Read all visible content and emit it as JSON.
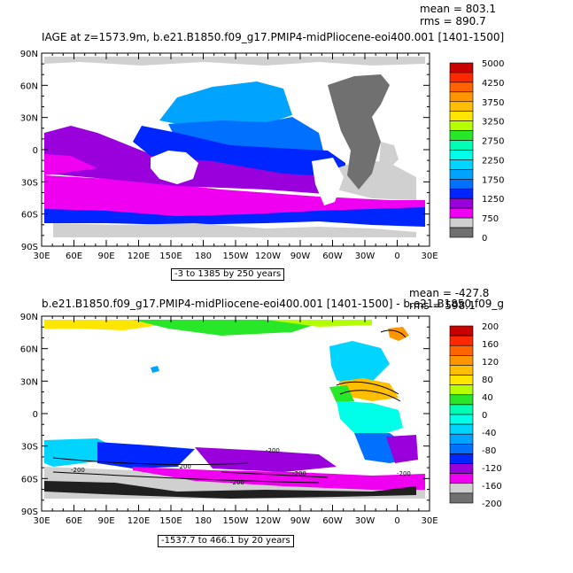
{
  "colors": {
    "land_gray": "#d0d0d0",
    "land_dark": "#707070",
    "palette": [
      "#707070",
      "#d0d0d0",
      "#f000f0",
      "#9a00dc",
      "#0026ff",
      "#0070ff",
      "#00a4ff",
      "#00d4ff",
      "#00ffe8",
      "#00ffb4",
      "#28e628",
      "#b4ff00",
      "#ffe600",
      "#ffbe00",
      "#ff9600",
      "#ff6400",
      "#ff2800",
      "#c80000"
    ]
  },
  "chart_data": [
    {
      "type": "heatmap",
      "title": "IAGE at z=1573.9m, b.e21.B1850.f09_g17.PMIP4-midPliocene-eoi400.001 [1401-1500]",
      "stat_mean": "mean = 803.1",
      "stat_rms": "rms = 890.7",
      "range_label": "-3 to 1385 by 250 years",
      "x_ticks": [
        "30E",
        "60E",
        "90E",
        "120E",
        "150E",
        "180",
        "150W",
        "120W",
        "90W",
        "60W",
        "30W",
        "0",
        "30E"
      ],
      "y_ticks": [
        "90N",
        "60N",
        "30N",
        "0",
        "30S",
        "60S",
        "90S"
      ],
      "colorbar_labels": [
        "5000",
        "4250",
        "3750",
        "3250",
        "2750",
        "2250",
        "1750",
        "1250",
        "750",
        "0"
      ]
    },
    {
      "type": "heatmap",
      "title": "b.e21.B1850.f09_g17.PMIP4-midPliocene-eoi400.001 [1401-1500] - b.e21.B1850.f09_g",
      "stat_mean": "mean = -427.8",
      "stat_rms": "rms = 598.1",
      "range_label": "-1537.7 to 466.1 by 20 years",
      "x_ticks": [
        "30E",
        "60E",
        "90E",
        "120E",
        "150E",
        "180",
        "150W",
        "120W",
        "90W",
        "60W",
        "30W",
        "0",
        "30E"
      ],
      "y_ticks": [
        "90N",
        "60N",
        "30N",
        "0",
        "30S",
        "60S",
        "90S"
      ],
      "colorbar_labels": [
        "200",
        "160",
        "120",
        "80",
        "40",
        "0",
        "-40",
        "-80",
        "-120",
        "-160",
        "-200"
      ],
      "contour_labels": [
        "-200",
        "-200",
        "-200",
        "-200",
        "-200",
        "-200"
      ]
    }
  ]
}
